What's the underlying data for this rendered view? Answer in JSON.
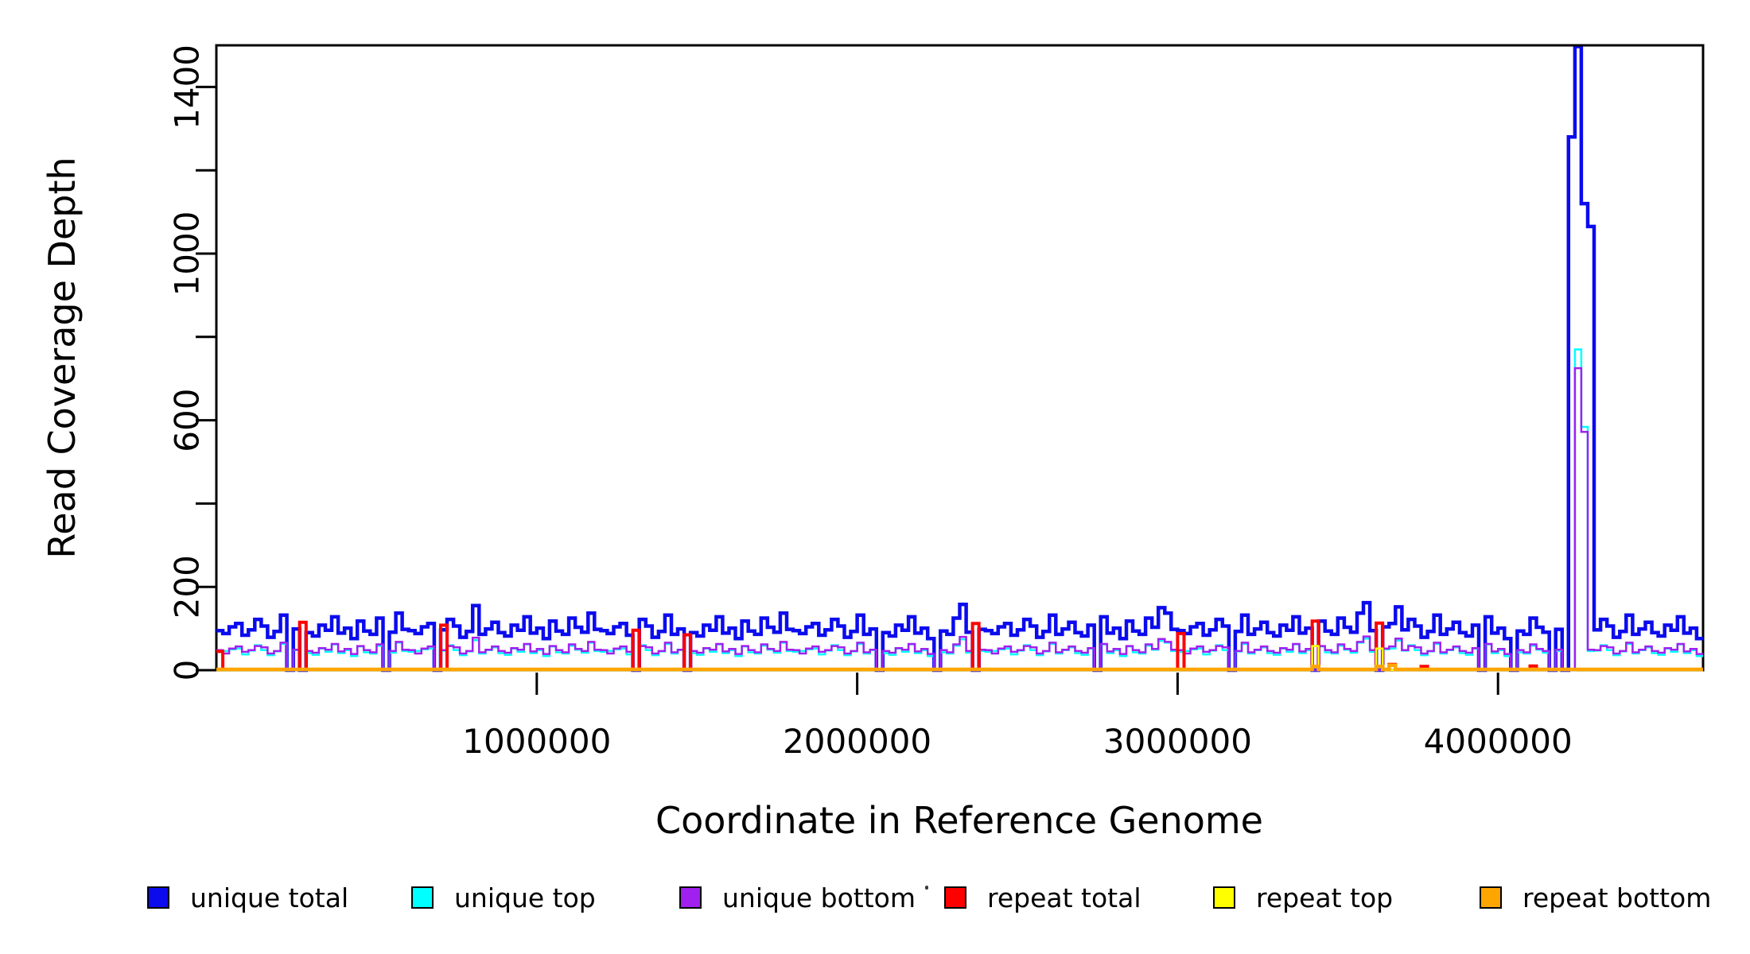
{
  "figure": {
    "background": "#ffffff"
  },
  "chart_data": {
    "type": "line",
    "subtype": "step-coverage",
    "title": "",
    "xlabel": "Coordinate in Reference Genome",
    "ylabel": "Read Coverage Depth",
    "xlim": [
      0,
      4640000
    ],
    "ylim": [
      0,
      1500
    ],
    "grid": false,
    "bin_size": 20000,
    "n_bins": 232,
    "x_ticks": [
      {
        "value": 1000000,
        "label": "1000000"
      },
      {
        "value": 2000000,
        "label": "2000000"
      },
      {
        "value": 3000000,
        "label": "3000000"
      },
      {
        "value": 4000000,
        "label": "4000000"
      }
    ],
    "y_ticks": [
      {
        "value": 0,
        "label": "0"
      },
      {
        "value": 200,
        "label": "200"
      },
      {
        "value": 400,
        "label": ""
      },
      {
        "value": 600,
        "label": "600"
      },
      {
        "value": 800,
        "label": ""
      },
      {
        "value": 1000,
        "label": "1000"
      },
      {
        "value": 1200,
        "label": ""
      },
      {
        "value": 1400,
        "label": "1400"
      }
    ],
    "legend": {
      "position": "bottom",
      "entries": [
        {
          "label": "unique total",
          "color": "#0b0bee"
        },
        {
          "label": "unique top",
          "color": "#00ffff"
        },
        {
          "label": "unique bottom",
          "color": "#a020f0"
        },
        {
          "label": "repeat total",
          "color": "#ff0000"
        },
        {
          "label": "repeat top",
          "color": "#ffff00"
        },
        {
          "label": "repeat bottom",
          "color": "#ffa500"
        }
      ]
    },
    "series": [
      {
        "name": "unique total",
        "color": "#0b0bee",
        "linewidth": 4.5,
        "values": [
          95,
          88,
          104,
          112,
          84,
          97,
          122,
          106,
          79,
          93,
          132,
          0,
          99,
          0,
          90,
          82,
          108,
          96,
          128,
          89,
          101,
          76,
          118,
          94,
          86,
          125,
          0,
          91,
          137,
          98,
          95,
          88,
          104,
          112,
          0,
          97,
          122,
          106,
          79,
          93,
          155,
          86,
          99,
          115,
          90,
          82,
          108,
          96,
          128,
          89,
          101,
          76,
          118,
          94,
          86,
          125,
          103,
          91,
          137,
          98,
          95,
          88,
          104,
          112,
          84,
          0,
          122,
          106,
          79,
          93,
          132,
          86,
          99,
          0,
          90,
          82,
          108,
          96,
          128,
          89,
          101,
          76,
          118,
          94,
          86,
          125,
          103,
          91,
          137,
          98,
          95,
          88,
          104,
          112,
          84,
          97,
          122,
          106,
          79,
          93,
          132,
          86,
          99,
          0,
          90,
          82,
          108,
          96,
          128,
          89,
          101,
          76,
          0,
          94,
          86,
          125,
          158,
          91,
          0,
          98,
          95,
          88,
          104,
          112,
          84,
          97,
          122,
          106,
          79,
          93,
          132,
          86,
          99,
          115,
          90,
          82,
          108,
          0,
          128,
          89,
          101,
          76,
          118,
          94,
          86,
          125,
          103,
          150,
          137,
          98,
          95,
          88,
          104,
          112,
          84,
          97,
          122,
          106,
          0,
          93,
          132,
          86,
          99,
          115,
          90,
          82,
          108,
          96,
          128,
          89,
          101,
          0,
          118,
          94,
          86,
          125,
          103,
          91,
          137,
          162,
          95,
          0,
          104,
          112,
          152,
          97,
          122,
          106,
          79,
          93,
          132,
          86,
          99,
          115,
          90,
          82,
          108,
          0,
          128,
          89,
          101,
          76,
          0,
          94,
          86,
          125,
          103,
          91,
          0,
          98,
          0,
          1280,
          1520,
          1120,
          1065,
          97,
          122,
          106,
          79,
          93,
          132,
          86,
          99,
          115,
          90,
          82,
          108,
          96,
          128,
          89,
          101,
          76
        ]
      },
      {
        "name": "unique top",
        "color": "#00ffff",
        "linewidth": 2.5,
        "values": [
          44,
          46,
          50,
          52,
          38,
          47,
          60,
          48,
          36,
          45,
          63,
          0,
          48,
          0,
          41,
          37,
          52,
          44,
          62,
          41,
          48,
          34,
          57,
          43,
          40,
          59,
          0,
          42,
          66,
          46,
          44,
          46,
          50,
          52,
          0,
          47,
          60,
          48,
          36,
          45,
          72,
          40,
          48,
          55,
          41,
          37,
          52,
          44,
          62,
          41,
          48,
          34,
          57,
          43,
          40,
          59,
          49,
          42,
          66,
          46,
          44,
          46,
          50,
          52,
          38,
          0,
          60,
          48,
          36,
          45,
          63,
          40,
          48,
          0,
          41,
          37,
          52,
          44,
          62,
          41,
          48,
          34,
          57,
          43,
          40,
          59,
          49,
          42,
          66,
          46,
          44,
          46,
          50,
          52,
          38,
          47,
          60,
          48,
          36,
          45,
          63,
          40,
          48,
          0,
          41,
          37,
          52,
          44,
          62,
          41,
          48,
          34,
          0,
          43,
          40,
          59,
          74,
          42,
          0,
          46,
          44,
          46,
          50,
          52,
          38,
          47,
          60,
          48,
          36,
          45,
          63,
          40,
          48,
          55,
          41,
          37,
          52,
          0,
          62,
          41,
          48,
          34,
          57,
          43,
          40,
          59,
          49,
          70,
          66,
          46,
          44,
          46,
          50,
          52,
          38,
          47,
          60,
          48,
          0,
          45,
          63,
          40,
          48,
          55,
          41,
          37,
          52,
          44,
          62,
          41,
          48,
          0,
          57,
          43,
          40,
          59,
          49,
          42,
          66,
          76,
          44,
          0,
          50,
          52,
          71,
          47,
          60,
          48,
          36,
          45,
          63,
          40,
          48,
          55,
          41,
          37,
          52,
          0,
          62,
          41,
          48,
          34,
          0,
          43,
          40,
          59,
          49,
          42,
          0,
          46,
          0,
          0,
          770,
          584,
          46,
          47,
          60,
          48,
          36,
          45,
          63,
          40,
          48,
          55,
          41,
          37,
          52,
          44,
          62,
          41,
          48,
          34
        ]
      },
      {
        "name": "unique bottom",
        "color": "#a020f0",
        "linewidth": 2.5,
        "values": [
          48,
          40,
          52,
          57,
          44,
          48,
          58,
          55,
          40,
          46,
          66,
          0,
          49,
          0,
          46,
          42,
          53,
          49,
          63,
          45,
          51,
          39,
          58,
          48,
          43,
          62,
          0,
          46,
          68,
          49,
          48,
          40,
          52,
          57,
          0,
          48,
          58,
          55,
          40,
          46,
          78,
          43,
          49,
          57,
          46,
          42,
          53,
          49,
          63,
          45,
          51,
          39,
          58,
          48,
          43,
          62,
          51,
          46,
          68,
          49,
          48,
          40,
          52,
          57,
          44,
          0,
          58,
          55,
          40,
          46,
          66,
          43,
          49,
          0,
          46,
          42,
          53,
          49,
          63,
          45,
          51,
          39,
          58,
          48,
          43,
          62,
          51,
          46,
          68,
          49,
          48,
          40,
          52,
          57,
          44,
          48,
          58,
          55,
          40,
          46,
          66,
          43,
          49,
          0,
          46,
          42,
          53,
          49,
          63,
          45,
          51,
          39,
          0,
          48,
          43,
          62,
          80,
          46,
          0,
          49,
          48,
          40,
          52,
          57,
          44,
          48,
          58,
          55,
          40,
          46,
          66,
          43,
          49,
          57,
          46,
          42,
          53,
          0,
          63,
          45,
          51,
          39,
          58,
          48,
          43,
          62,
          51,
          75,
          68,
          49,
          48,
          40,
          52,
          57,
          44,
          48,
          58,
          55,
          0,
          46,
          66,
          43,
          49,
          57,
          46,
          42,
          53,
          49,
          63,
          45,
          51,
          0,
          58,
          48,
          43,
          62,
          51,
          46,
          68,
          81,
          48,
          0,
          52,
          57,
          76,
          48,
          58,
          55,
          40,
          46,
          66,
          43,
          49,
          57,
          46,
          42,
          53,
          0,
          63,
          45,
          51,
          39,
          0,
          48,
          43,
          62,
          51,
          46,
          0,
          49,
          0,
          0,
          725,
          572,
          49,
          48,
          58,
          55,
          40,
          46,
          66,
          43,
          49,
          57,
          46,
          42,
          53,
          49,
          63,
          45,
          51,
          39
        ]
      },
      {
        "name": "repeat total",
        "color": "#ff0000",
        "linewidth": 4,
        "baseline": 2,
        "spikes": [
          [
            0,
            45
          ],
          [
            13,
            115
          ],
          [
            35,
            108
          ],
          [
            65,
            96
          ],
          [
            73,
            85
          ],
          [
            118,
            112
          ],
          [
            150,
            88
          ],
          [
            171,
            118
          ],
          [
            181,
            113
          ],
          [
            183,
            14
          ],
          [
            188,
            9
          ],
          [
            205,
            10
          ]
        ]
      },
      {
        "name": "repeat top",
        "color": "#ffff00",
        "linewidth": 2.5,
        "baseline": 0,
        "spikes": [
          [
            171,
            58
          ],
          [
            181,
            52
          ]
        ]
      },
      {
        "name": "repeat bottom",
        "color": "#ffa500",
        "linewidth": 4.5,
        "baseline": 2,
        "spikes": [
          [
            171,
            9
          ],
          [
            181,
            9
          ],
          [
            183,
            12
          ]
        ]
      }
    ]
  }
}
